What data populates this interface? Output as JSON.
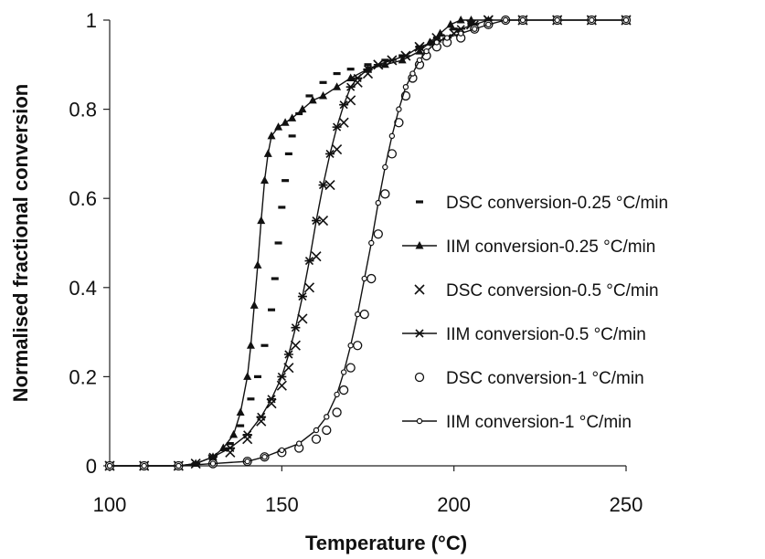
{
  "chart_data": {
    "type": "scatter",
    "xlabel": "Temperature (°C)",
    "ylabel": "Normalised fractional conversion",
    "xlim": [
      100,
      250
    ],
    "ylim": [
      0,
      1
    ],
    "x_ticks": [
      "100",
      "150",
      "200",
      "250"
    ],
    "y_ticks": [
      "0",
      "0.2",
      "0.4",
      "0.6",
      "0.8",
      "1"
    ],
    "grid": false,
    "legend_position": "right",
    "series": [
      {
        "name": "DSC conversion-0.25 °C/min",
        "marker": "dash",
        "line": false,
        "points": [
          [
            100,
            0
          ],
          [
            110,
            0
          ],
          [
            120,
            0
          ],
          [
            125,
            0.005
          ],
          [
            130,
            0.02
          ],
          [
            135,
            0.05
          ],
          [
            138,
            0.09
          ],
          [
            141,
            0.15
          ],
          [
            143,
            0.2
          ],
          [
            145,
            0.27
          ],
          [
            147,
            0.35
          ],
          [
            148,
            0.42
          ],
          [
            149,
            0.5
          ],
          [
            150,
            0.58
          ],
          [
            151,
            0.64
          ],
          [
            152,
            0.7
          ],
          [
            153,
            0.74
          ],
          [
            155,
            0.79
          ],
          [
            158,
            0.83
          ],
          [
            162,
            0.86
          ],
          [
            166,
            0.88
          ],
          [
            170,
            0.89
          ],
          [
            175,
            0.9
          ],
          [
            180,
            0.91
          ],
          [
            185,
            0.92
          ],
          [
            190,
            0.94
          ],
          [
            195,
            0.96
          ],
          [
            200,
            0.98
          ],
          [
            205,
            0.99
          ],
          [
            210,
            1
          ],
          [
            220,
            1
          ],
          [
            230,
            1
          ],
          [
            240,
            1
          ],
          [
            250,
            1
          ]
        ]
      },
      {
        "name": "IIM conversion-0.25 °C/min",
        "marker": "triangle",
        "line": true,
        "points": [
          [
            100,
            0
          ],
          [
            110,
            0
          ],
          [
            120,
            0
          ],
          [
            125,
            0.005
          ],
          [
            130,
            0.02
          ],
          [
            133,
            0.04
          ],
          [
            136,
            0.07
          ],
          [
            138,
            0.12
          ],
          [
            140,
            0.2
          ],
          [
            141,
            0.27
          ],
          [
            142,
            0.36
          ],
          [
            143,
            0.45
          ],
          [
            144,
            0.55
          ],
          [
            145,
            0.64
          ],
          [
            146,
            0.7
          ],
          [
            147,
            0.74
          ],
          [
            149,
            0.76
          ],
          [
            151,
            0.77
          ],
          [
            153,
            0.78
          ],
          [
            156,
            0.8
          ],
          [
            159,
            0.82
          ],
          [
            162,
            0.83
          ],
          [
            166,
            0.85
          ],
          [
            170,
            0.87
          ],
          [
            175,
            0.89
          ],
          [
            180,
            0.9
          ],
          [
            185,
            0.91
          ],
          [
            190,
            0.93
          ],
          [
            193,
            0.95
          ],
          [
            196,
            0.97
          ],
          [
            199,
            0.99
          ],
          [
            202,
            1
          ],
          [
            205,
            1
          ],
          [
            210,
            1
          ]
        ]
      },
      {
        "name": "DSC conversion-0.5 °C/min",
        "marker": "x",
        "line": false,
        "points": [
          [
            100,
            0
          ],
          [
            110,
            0
          ],
          [
            120,
            0
          ],
          [
            125,
            0.005
          ],
          [
            130,
            0.015
          ],
          [
            135,
            0.03
          ],
          [
            140,
            0.06
          ],
          [
            144,
            0.1
          ],
          [
            147,
            0.14
          ],
          [
            150,
            0.18
          ],
          [
            152,
            0.22
          ],
          [
            154,
            0.27
          ],
          [
            156,
            0.33
          ],
          [
            158,
            0.4
          ],
          [
            160,
            0.47
          ],
          [
            162,
            0.55
          ],
          [
            164,
            0.63
          ],
          [
            166,
            0.71
          ],
          [
            168,
            0.77
          ],
          [
            170,
            0.82
          ],
          [
            172,
            0.86
          ],
          [
            175,
            0.88
          ],
          [
            178,
            0.9
          ],
          [
            182,
            0.91
          ],
          [
            186,
            0.92
          ],
          [
            190,
            0.94
          ],
          [
            195,
            0.96
          ],
          [
            200,
            0.97
          ],
          [
            205,
            0.99
          ],
          [
            210,
            1
          ],
          [
            220,
            1
          ],
          [
            230,
            1
          ],
          [
            240,
            1
          ],
          [
            250,
            1
          ]
        ]
      },
      {
        "name": "IIM conversion-0.5 °C/min",
        "marker": "star",
        "line": true,
        "points": [
          [
            100,
            0
          ],
          [
            110,
            0
          ],
          [
            120,
            0
          ],
          [
            125,
            0.005
          ],
          [
            130,
            0.02
          ],
          [
            135,
            0.04
          ],
          [
            140,
            0.07
          ],
          [
            144,
            0.11
          ],
          [
            147,
            0.15
          ],
          [
            150,
            0.2
          ],
          [
            152,
            0.25
          ],
          [
            154,
            0.31
          ],
          [
            156,
            0.38
          ],
          [
            158,
            0.46
          ],
          [
            160,
            0.55
          ],
          [
            162,
            0.63
          ],
          [
            164,
            0.7
          ],
          [
            166,
            0.76
          ],
          [
            168,
            0.81
          ],
          [
            170,
            0.85
          ],
          [
            172,
            0.87
          ],
          [
            175,
            0.89
          ],
          [
            178,
            0.9
          ],
          [
            182,
            0.91
          ],
          [
            186,
            0.92
          ],
          [
            190,
            0.94
          ],
          [
            194,
            0.95
          ],
          [
            198,
            0.96
          ],
          [
            202,
            0.98
          ],
          [
            206,
            0.99
          ],
          [
            210,
            1
          ],
          [
            220,
            1
          ],
          [
            230,
            1
          ],
          [
            240,
            1
          ],
          [
            250,
            1
          ]
        ]
      },
      {
        "name": "DSC conversion-1 °C/min",
        "marker": "circle",
        "line": false,
        "points": [
          [
            100,
            0
          ],
          [
            110,
            0
          ],
          [
            120,
            0
          ],
          [
            130,
            0.005
          ],
          [
            140,
            0.01
          ],
          [
            145,
            0.02
          ],
          [
            150,
            0.03
          ],
          [
            155,
            0.04
          ],
          [
            160,
            0.06
          ],
          [
            163,
            0.08
          ],
          [
            166,
            0.12
          ],
          [
            168,
            0.17
          ],
          [
            170,
            0.22
          ],
          [
            172,
            0.27
          ],
          [
            174,
            0.34
          ],
          [
            176,
            0.42
          ],
          [
            178,
            0.52
          ],
          [
            180,
            0.61
          ],
          [
            182,
            0.7
          ],
          [
            184,
            0.77
          ],
          [
            186,
            0.83
          ],
          [
            188,
            0.87
          ],
          [
            190,
            0.9
          ],
          [
            192,
            0.92
          ],
          [
            195,
            0.94
          ],
          [
            198,
            0.95
          ],
          [
            202,
            0.96
          ],
          [
            206,
            0.98
          ],
          [
            210,
            0.99
          ],
          [
            215,
            1
          ],
          [
            220,
            1
          ],
          [
            230,
            1
          ],
          [
            240,
            1
          ],
          [
            250,
            1
          ]
        ]
      },
      {
        "name": "IIM conversion-1 °C/min",
        "marker": "small-circle",
        "line": true,
        "points": [
          [
            100,
            0
          ],
          [
            110,
            0
          ],
          [
            120,
            0
          ],
          [
            130,
            0.005
          ],
          [
            140,
            0.01
          ],
          [
            145,
            0.02
          ],
          [
            150,
            0.035
          ],
          [
            155,
            0.05
          ],
          [
            160,
            0.08
          ],
          [
            163,
            0.11
          ],
          [
            166,
            0.16
          ],
          [
            168,
            0.21
          ],
          [
            170,
            0.27
          ],
          [
            172,
            0.34
          ],
          [
            174,
            0.42
          ],
          [
            176,
            0.5
          ],
          [
            178,
            0.59
          ],
          [
            180,
            0.67
          ],
          [
            182,
            0.74
          ],
          [
            184,
            0.8
          ],
          [
            186,
            0.85
          ],
          [
            188,
            0.88
          ],
          [
            190,
            0.91
          ],
          [
            192,
            0.93
          ],
          [
            195,
            0.95
          ],
          [
            198,
            0.96
          ],
          [
            202,
            0.97
          ],
          [
            206,
            0.98
          ],
          [
            210,
            0.99
          ],
          [
            215,
            1
          ],
          [
            220,
            1
          ],
          [
            230,
            1
          ],
          [
            240,
            1
          ],
          [
            250,
            1
          ]
        ]
      }
    ]
  }
}
